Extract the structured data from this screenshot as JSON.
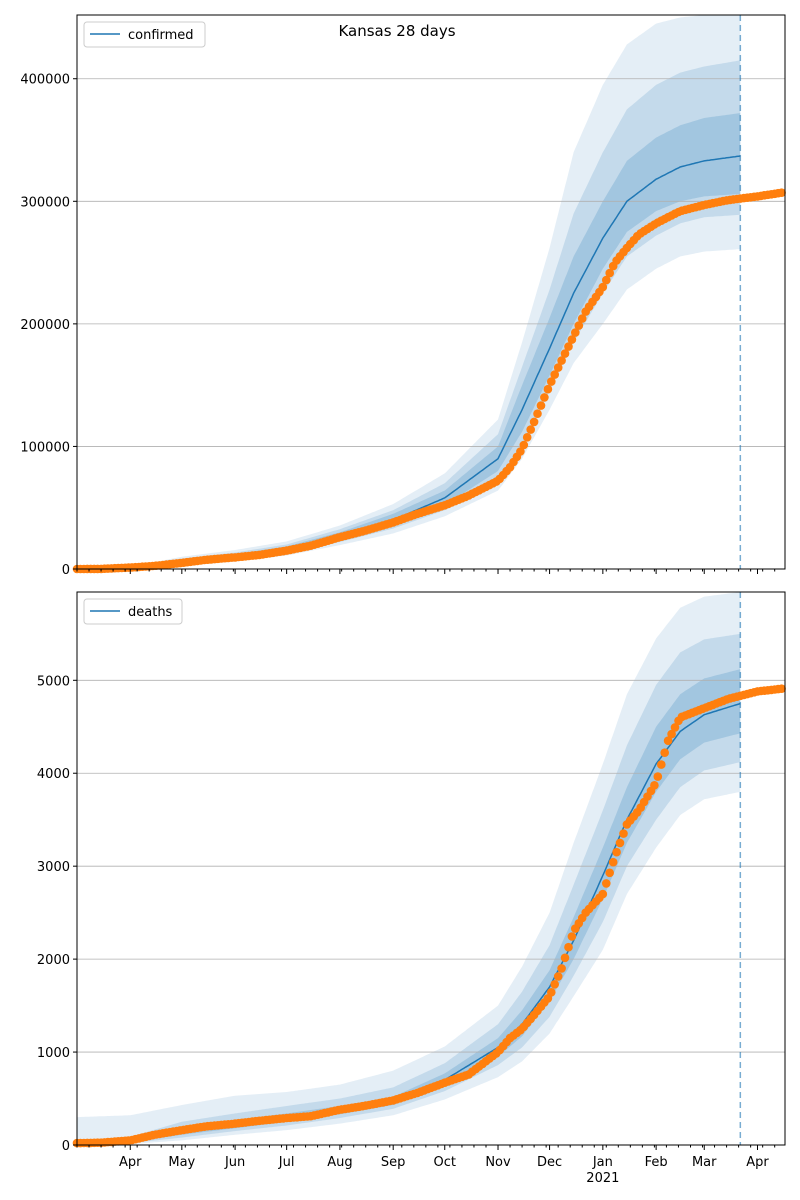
{
  "chart_data": [
    {
      "type": "line",
      "title": "Kansas 28 days",
      "legend": {
        "entries": [
          "confirmed"
        ],
        "placement": "top-left"
      },
      "ylim": [
        0,
        452000
      ],
      "yticks": [
        0,
        100000,
        200000,
        300000,
        400000
      ],
      "ytick_labels": [
        "0",
        "100000",
        "200000",
        "300000",
        "400000"
      ],
      "grid": "horizontal",
      "forecast_start": "2021-03-22",
      "series": [
        {
          "name": "confirmed",
          "kind": "model median with shaded uncertainty bands",
          "dates": [
            "2020-03-01",
            "2020-04-01",
            "2020-05-01",
            "2020-06-01",
            "2020-07-01",
            "2020-08-01",
            "2020-09-01",
            "2020-10-01",
            "2020-11-01",
            "2020-11-15",
            "2020-12-01",
            "2020-12-15",
            "2021-01-01",
            "2021-01-15",
            "2021-02-01",
            "2021-02-15",
            "2021-03-01",
            "2021-03-22"
          ],
          "median": [
            0,
            500,
            5500,
            10000,
            16000,
            27000,
            40000,
            58000,
            90000,
            130000,
            180000,
            225000,
            270000,
            300000,
            318000,
            328000,
            333000,
            337000
          ],
          "band_50_low": [
            0,
            300,
            4500,
            8500,
            14000,
            24000,
            36000,
            52000,
            80000,
            112000,
            158000,
            200000,
            245000,
            275000,
            292000,
            300000,
            304000,
            306000
          ],
          "band_50_high": [
            0,
            800,
            7000,
            12000,
            18500,
            30000,
            45000,
            64000,
            100000,
            150000,
            205000,
            255000,
            300000,
            333000,
            352000,
            362000,
            368000,
            372000
          ],
          "band_80_low": [
            0,
            200,
            3500,
            7500,
            12500,
            22000,
            33000,
            48000,
            73000,
            100000,
            145000,
            185000,
            225000,
            255000,
            272000,
            282000,
            287000,
            289000
          ],
          "band_80_high": [
            0,
            1200,
            8500,
            13500,
            20000,
            32500,
            48000,
            70000,
            110000,
            165000,
            228000,
            290000,
            340000,
            375000,
            395000,
            405000,
            410000,
            415000
          ],
          "band_95_low": [
            0,
            100,
            2500,
            6000,
            11000,
            19500,
            29000,
            43000,
            64000,
            90000,
            130000,
            168000,
            200000,
            228000,
            245000,
            255000,
            259000,
            261000
          ],
          "band_95_high": [
            0,
            1800,
            10000,
            15500,
            22500,
            35500,
            53000,
            78000,
            122000,
            185000,
            262000,
            340000,
            395000,
            428000,
            445000,
            450000,
            452000,
            455000
          ]
        },
        {
          "name": "observed confirmed",
          "kind": "daily observed points",
          "dates": [
            "2020-03-01",
            "2020-03-15",
            "2020-04-01",
            "2020-04-15",
            "2020-05-01",
            "2020-05-15",
            "2020-06-01",
            "2020-06-15",
            "2020-07-01",
            "2020-07-15",
            "2020-08-01",
            "2020-08-15",
            "2020-09-01",
            "2020-09-15",
            "2020-10-01",
            "2020-10-15",
            "2020-11-01",
            "2020-11-08",
            "2020-11-15",
            "2020-11-22",
            "2020-12-01",
            "2020-12-08",
            "2020-12-15",
            "2020-12-22",
            "2021-01-01",
            "2021-01-08",
            "2021-01-15",
            "2021-01-22",
            "2021-02-01",
            "2021-02-08",
            "2021-02-15",
            "2021-03-01",
            "2021-03-15",
            "2021-04-01",
            "2021-04-15"
          ],
          "values": [
            0,
            100,
            1200,
            2500,
            5000,
            7500,
            9500,
            11500,
            15000,
            19000,
            26000,
            31000,
            38000,
            45000,
            52000,
            60000,
            72000,
            83000,
            98000,
            120000,
            150000,
            170000,
            190000,
            210000,
            230000,
            250000,
            262000,
            273000,
            282000,
            287000,
            292000,
            297000,
            301000,
            304000,
            307000
          ]
        }
      ]
    },
    {
      "type": "line",
      "legend": {
        "entries": [
          "deaths"
        ],
        "placement": "top-left"
      },
      "ylim": [
        0,
        5950
      ],
      "yticks": [
        0,
        1000,
        2000,
        3000,
        4000,
        5000
      ],
      "ytick_labels": [
        "0",
        "1000",
        "2000",
        "3000",
        "4000",
        "5000"
      ],
      "xtick_labels": [
        "Apr",
        "May",
        "Jun",
        "Jul",
        "Aug",
        "Sep",
        "Oct",
        "Nov",
        "Dec",
        "Jan",
        "Feb",
        "Mar",
        "Apr"
      ],
      "xtick_dates": [
        "2020-04-01",
        "2020-05-01",
        "2020-06-01",
        "2020-07-01",
        "2020-08-01",
        "2020-09-01",
        "2020-10-01",
        "2020-11-01",
        "2020-12-01",
        "2021-01-01",
        "2021-02-01",
        "2021-03-01",
        "2021-04-01"
      ],
      "x_year_label": "2021",
      "xlim": [
        "2020-03-01",
        "2021-04-17"
      ],
      "grid": "horizontal",
      "forecast_start": "2021-03-22",
      "series": [
        {
          "name": "deaths",
          "kind": "model median with shaded uncertainty bands",
          "dates": [
            "2020-03-01",
            "2020-04-01",
            "2020-05-01",
            "2020-06-01",
            "2020-07-01",
            "2020-08-01",
            "2020-09-01",
            "2020-10-01",
            "2020-11-01",
            "2020-11-15",
            "2020-12-01",
            "2020-12-15",
            "2021-01-01",
            "2021-01-15",
            "2021-02-01",
            "2021-02-15",
            "2021-03-01",
            "2021-03-22"
          ],
          "median": [
            20,
            40,
            150,
            220,
            290,
            370,
            470,
            700,
            1050,
            1300,
            1700,
            2200,
            2900,
            3500,
            4100,
            4450,
            4630,
            4750
          ],
          "band_50_low": [
            15,
            30,
            110,
            180,
            250,
            330,
            430,
            640,
            950,
            1170,
            1550,
            2000,
            2650,
            3250,
            3800,
            4150,
            4330,
            4430
          ],
          "band_50_high": [
            25,
            60,
            190,
            270,
            340,
            420,
            520,
            770,
            1150,
            1450,
            1880,
            2450,
            3200,
            3850,
            4500,
            4850,
            5020,
            5120
          ],
          "band_80_low": [
            10,
            20,
            80,
            150,
            210,
            290,
            390,
            580,
            860,
            1050,
            1380,
            1820,
            2400,
            3000,
            3500,
            3850,
            4030,
            4120
          ],
          "band_80_high": [
            30,
            90,
            250,
            340,
            420,
            500,
            620,
            880,
            1300,
            1650,
            2150,
            2800,
            3600,
            4300,
            4950,
            5300,
            5440,
            5500
          ],
          "band_95_low": [
            0,
            10,
            50,
            110,
            160,
            230,
            320,
            490,
            730,
            900,
            1200,
            1600,
            2100,
            2700,
            3200,
            3550,
            3720,
            3800
          ],
          "band_95_high": [
            300,
            320,
            430,
            530,
            570,
            650,
            800,
            1060,
            1500,
            1920,
            2500,
            3250,
            4100,
            4850,
            5450,
            5780,
            5900,
            5950
          ]
        },
        {
          "name": "observed deaths",
          "kind": "daily observed points",
          "dates": [
            "2020-03-01",
            "2020-03-15",
            "2020-04-01",
            "2020-04-15",
            "2020-05-01",
            "2020-05-15",
            "2020-06-01",
            "2020-06-15",
            "2020-07-01",
            "2020-07-15",
            "2020-08-01",
            "2020-08-15",
            "2020-09-01",
            "2020-09-15",
            "2020-10-01",
            "2020-10-15",
            "2020-11-01",
            "2020-11-08",
            "2020-11-15",
            "2020-11-22",
            "2020-12-01",
            "2020-12-08",
            "2020-12-15",
            "2020-12-22",
            "2021-01-01",
            "2021-01-08",
            "2021-01-15",
            "2021-01-22",
            "2021-02-01",
            "2021-02-08",
            "2021-02-15",
            "2021-03-01",
            "2021-03-15",
            "2021-04-01",
            "2021-04-15"
          ],
          "values": [
            20,
            25,
            50,
            110,
            160,
            200,
            230,
            260,
            290,
            310,
            380,
            420,
            480,
            560,
            670,
            760,
            1000,
            1150,
            1250,
            1400,
            1600,
            1900,
            2300,
            2500,
            2700,
            3100,
            3450,
            3600,
            3900,
            4350,
            4600,
            4700,
            4800,
            4880,
            4910
          ]
        }
      ]
    }
  ]
}
